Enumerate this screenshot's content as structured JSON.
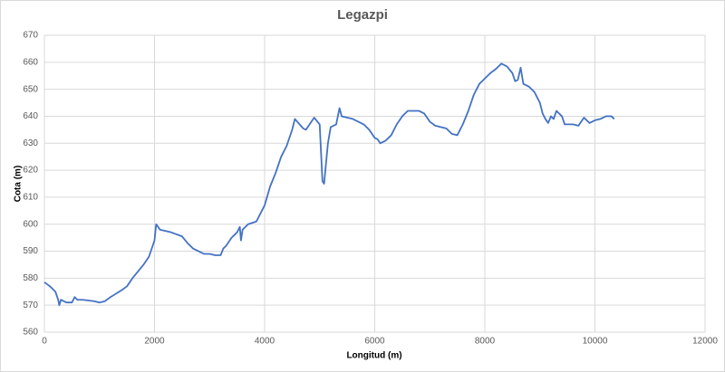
{
  "chart_data": {
    "type": "line",
    "title": "Legazpi",
    "x_label": "Longitud (m)",
    "y_label": "Cota (m)",
    "xlim": [
      0,
      12000
    ],
    "xticks": [
      0,
      2000,
      4000,
      6000,
      8000,
      10000,
      12000
    ],
    "ylim": [
      560,
      670
    ],
    "yticks": [
      560,
      570,
      580,
      590,
      600,
      610,
      620,
      630,
      640,
      650,
      660,
      670
    ],
    "grid": true,
    "x": [
      0,
      100,
      200,
      250,
      270,
      300,
      400,
      500,
      550,
      600,
      700,
      900,
      1000,
      1100,
      1200,
      1400,
      1500,
      1600,
      1800,
      1900,
      2000,
      2030,
      2100,
      2300,
      2500,
      2600,
      2700,
      2900,
      3000,
      3100,
      3200,
      3250,
      3300,
      3400,
      3500,
      3550,
      3570,
      3600,
      3700,
      3850,
      3950,
      4000,
      4100,
      4200,
      4300,
      4400,
      4500,
      4550,
      4700,
      4750,
      4850,
      4900,
      5000,
      5050,
      5080,
      5150,
      5200,
      5300,
      5360,
      5400,
      5600,
      5800,
      5900,
      6000,
      6050,
      6100,
      6200,
      6300,
      6400,
      6500,
      6600,
      6700,
      6800,
      6900,
      7000,
      7100,
      7300,
      7400,
      7500,
      7600,
      7700,
      7800,
      7900,
      8000,
      8100,
      8200,
      8300,
      8400,
      8500,
      8550,
      8600,
      8650,
      8700,
      8800,
      8900,
      9000,
      9050,
      9100,
      9150,
      9200,
      9250,
      9300,
      9400,
      9450,
      9600,
      9700,
      9800,
      9900,
      10000,
      10100,
      10200,
      10300,
      10350
    ],
    "series": [
      {
        "name": "Cota (m)",
        "color": "#4472c4",
        "values": [
          578.5,
          577,
          575,
          572,
          570,
          572,
          571,
          571,
          573,
          572,
          572,
          571.5,
          571,
          571.5,
          573,
          575.5,
          577,
          580,
          585,
          588,
          594,
          600,
          598,
          597,
          595.5,
          593,
          591,
          589,
          589,
          588.5,
          588.5,
          591,
          592,
          595,
          597,
          599,
          594,
          598,
          600,
          601,
          605,
          607,
          614,
          619,
          625,
          629,
          635,
          639,
          635.5,
          635,
          638,
          639.5,
          637,
          616,
          615,
          630,
          636,
          637,
          643,
          640,
          639,
          637,
          635,
          632,
          631.5,
          630,
          631,
          633,
          637,
          640,
          642,
          642,
          642,
          641,
          638,
          636.5,
          635.5,
          633.5,
          633,
          637,
          642,
          648,
          652,
          654,
          656,
          657.5,
          659.5,
          658.5,
          656,
          653,
          653.5,
          658,
          652,
          651,
          649,
          645,
          641,
          639,
          637.5,
          640,
          639,
          642,
          640,
          637,
          637,
          636.5,
          639.5,
          637.5,
          638.5,
          639,
          640,
          640,
          639
        ]
      }
    ]
  }
}
